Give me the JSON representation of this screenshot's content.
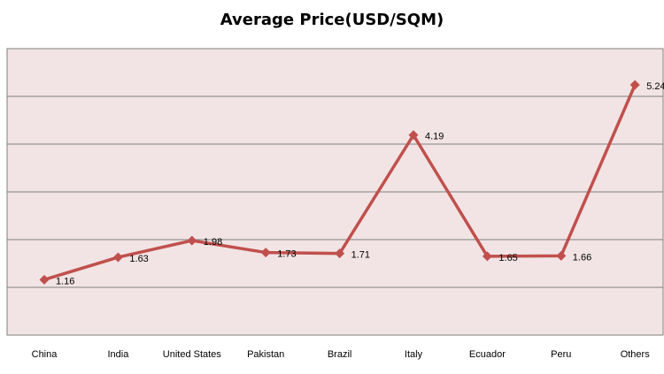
{
  "chart_data": {
    "type": "line",
    "title": "Average Price(USD/SQM)",
    "xlabel": "",
    "ylabel": "",
    "categories": [
      "China",
      "India",
      "United States",
      "Pakistan",
      "Brazil",
      "Italy",
      "Ecuador",
      "Peru",
      "Others"
    ],
    "values": [
      1.16,
      1.63,
      1.98,
      1.73,
      1.71,
      4.19,
      1.65,
      1.66,
      5.24
    ],
    "ylim": [
      0,
      6
    ],
    "grid": true,
    "legend": "none",
    "colors": {
      "line": "#c0504d",
      "plot_background": "#f2e4e4",
      "gridline": "#7f7f7f"
    }
  }
}
